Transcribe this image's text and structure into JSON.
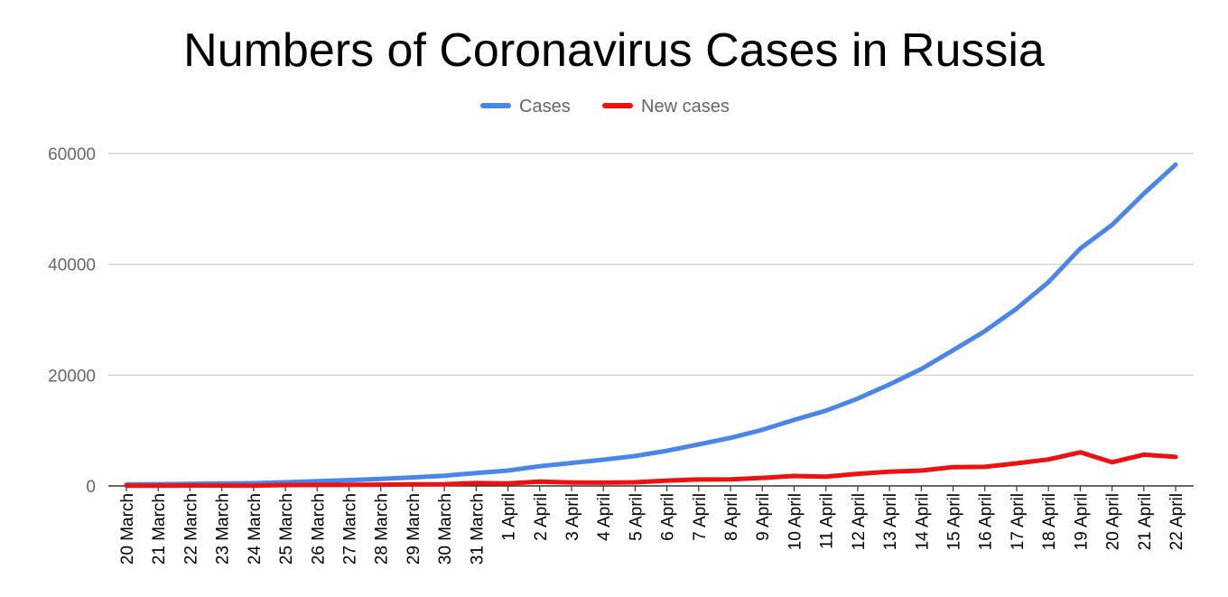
{
  "chart_data": {
    "type": "line",
    "title": "Numbers of Coronavirus Cases in Russia",
    "xlabel": "",
    "ylabel": "",
    "categories": [
      "20 March",
      "21 March",
      "22 March",
      "23 March",
      "24 March",
      "25 March",
      "26 March",
      "27 March",
      "28 March",
      "29 March",
      "30 March",
      "31 March",
      "1 April",
      "2 April",
      "3 April",
      "4 April",
      "5 April",
      "6 April",
      "7 April",
      "8 April",
      "9 April",
      "10 April",
      "11 April",
      "12 April",
      "13 April",
      "14 April",
      "15 April",
      "16 April",
      "17 April",
      "18 April",
      "19 April",
      "20 April",
      "21 April",
      "22 April"
    ],
    "series": [
      {
        "name": "Cases",
        "color": "#4a86e8",
        "values": [
          253,
          306,
          367,
          438,
          495,
          658,
          840,
          1036,
          1264,
          1534,
          1836,
          2337,
          2777,
          3548,
          4149,
          4731,
          5389,
          6343,
          7497,
          8672,
          10131,
          11917,
          13584,
          15770,
          18328,
          21102,
          24490,
          27938,
          32008,
          36793,
          42853,
          47121,
          52763,
          57999
        ]
      },
      {
        "name": "New cases",
        "color": "#ee1111",
        "values": [
          53,
          53,
          61,
          71,
          57,
          163,
          182,
          196,
          228,
          270,
          302,
          501,
          440,
          771,
          601,
          582,
          658,
          954,
          1154,
          1175,
          1459,
          1786,
          1667,
          2186,
          2558,
          2774,
          3388,
          3448,
          4070,
          4785,
          6060,
          4268,
          5642,
          5236
        ]
      }
    ],
    "ylim": [
      0,
      60000
    ],
    "yticks": [
      0,
      20000,
      40000,
      60000
    ],
    "grid": true,
    "legend_position": "top-center"
  }
}
